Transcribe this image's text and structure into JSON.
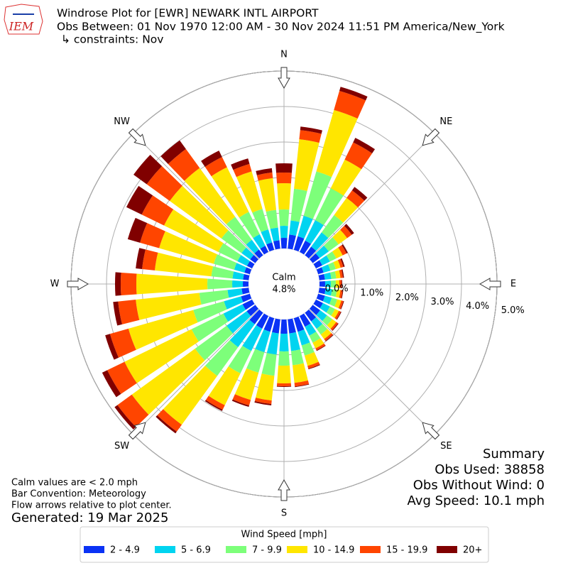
{
  "logo": "IEM",
  "title_lines": [
    "Windrose Plot for [EWR] NEWARK INTL AIRPORT",
    "Obs Between: 01 Nov 1970 12:00 AM - 30 Nov 2024 11:51 PM America/New_York",
    "↳ constraints: Nov"
  ],
  "summary": [
    "Summary",
    "Obs Used: 38858",
    "Obs Without Wind: 0",
    "Avg Speed: 10.1 mph"
  ],
  "notes": [
    "Calm values are < 2.0 mph",
    "Bar Convention: Meteorology",
    "Flow arrows relative to plot center."
  ],
  "generated": "Generated: 19 Mar 2025",
  "chart_data": {
    "type": "windrose",
    "x": [
      0,
      10,
      20,
      30,
      40,
      50,
      60,
      70,
      80,
      90,
      100,
      110,
      120,
      130,
      140,
      150,
      160,
      170,
      180,
      190,
      200,
      210,
      220,
      230,
      240,
      250,
      260,
      270,
      280,
      290,
      300,
      310,
      320,
      330,
      340,
      350
    ],
    "compass_labels": [
      "N",
      "NE",
      "E",
      "SE",
      "S",
      "SW",
      "W",
      "NW"
    ],
    "rlim": [
      0,
      5
    ],
    "rticks": [
      {
        "value": 0,
        "label": "0.0%"
      },
      {
        "value": 1,
        "label": "1.0%"
      },
      {
        "value": 2,
        "label": "2.0%"
      },
      {
        "value": 3,
        "label": "3.0%"
      },
      {
        "value": 4,
        "label": "4.0%"
      },
      {
        "value": 5,
        "label": "5.0%"
      }
    ],
    "grid": true,
    "calm_label": "Calm",
    "calm": {
      "value": 4.8,
      "label": "4.8%"
    },
    "legend_title": "Wind Speed [mph]",
    "series": [
      {
        "name": "2 - 4.9",
        "color": "#0a32f5",
        "values": [
          0.3,
          0.4,
          0.4,
          0.36,
          0.3,
          0.24,
          0.2,
          0.16,
          0.16,
          0.16,
          0.18,
          0.2,
          0.22,
          0.26,
          0.3,
          0.34,
          0.4,
          0.4,
          0.4,
          0.4,
          0.4,
          0.4,
          0.4,
          0.3,
          0.3,
          0.26,
          0.2,
          0.16,
          0.16,
          0.16,
          0.16,
          0.18,
          0.2,
          0.2,
          0.22,
          0.24
        ]
      },
      {
        "name": "5 - 6.9",
        "color": "#00d4f0",
        "values": [
          0.34,
          0.4,
          0.6,
          0.64,
          0.5,
          0.32,
          0.24,
          0.2,
          0.18,
          0.16,
          0.18,
          0.2,
          0.22,
          0.24,
          0.26,
          0.28,
          0.4,
          0.5,
          0.5,
          0.6,
          0.6,
          0.7,
          0.8,
          0.7,
          0.6,
          0.5,
          0.4,
          0.3,
          0.3,
          0.3,
          0.3,
          0.3,
          0.34,
          0.36,
          0.38,
          0.36
        ]
      },
      {
        "name": "7 - 9.9",
        "color": "#7dff7a",
        "values": [
          0.46,
          0.9,
          1.3,
          1.0,
          0.6,
          0.34,
          0.2,
          0.16,
          0.14,
          0.14,
          0.14,
          0.16,
          0.16,
          0.18,
          0.2,
          0.22,
          0.3,
          0.4,
          0.4,
          0.6,
          0.6,
          0.7,
          1.0,
          1.1,
          1.0,
          0.9,
          0.8,
          0.7,
          0.6,
          0.6,
          0.6,
          0.7,
          0.8,
          0.7,
          0.6,
          0.5
        ]
      },
      {
        "name": "10 - 14.9",
        "color": "#ffe600",
        "values": [
          0.74,
          1.4,
          1.8,
          0.9,
          0.6,
          0.3,
          0.2,
          0.14,
          0.12,
          0.1,
          0.1,
          0.12,
          0.12,
          0.14,
          0.16,
          0.18,
          0.3,
          0.5,
          0.5,
          0.7,
          0.8,
          1.0,
          1.7,
          2.2,
          2.1,
          1.9,
          1.8,
          2.0,
          1.6,
          1.6,
          1.7,
          1.8,
          1.7,
          1.4,
          1.1,
          0.9
        ]
      },
      {
        "name": "15 - 19.9",
        "color": "#ff4500",
        "values": [
          0.3,
          0.26,
          0.56,
          0.54,
          0.26,
          0.16,
          0.12,
          0.08,
          0.07,
          0.06,
          0.06,
          0.06,
          0.06,
          0.06,
          0.06,
          0.06,
          0.08,
          0.1,
          0.08,
          0.1,
          0.16,
          0.14,
          0.24,
          0.5,
          0.54,
          0.54,
          0.5,
          0.44,
          0.36,
          0.56,
          0.7,
          0.8,
          0.66,
          0.32,
          0.22,
          0.16
        ]
      },
      {
        "name": "20+",
        "color": "#800000",
        "values": [
          0.26,
          0.1,
          0.12,
          0.14,
          0.12,
          0.08,
          0.04,
          0.04,
          0.03,
          0.02,
          0.02,
          0.02,
          0.02,
          0.02,
          0.02,
          0.02,
          0.02,
          0.02,
          0.02,
          0.04,
          0.04,
          0.04,
          0.06,
          0.1,
          0.16,
          0.14,
          0.14,
          0.16,
          0.18,
          0.36,
          0.48,
          0.46,
          0.3,
          0.2,
          0.16,
          0.12
        ]
      }
    ]
  }
}
